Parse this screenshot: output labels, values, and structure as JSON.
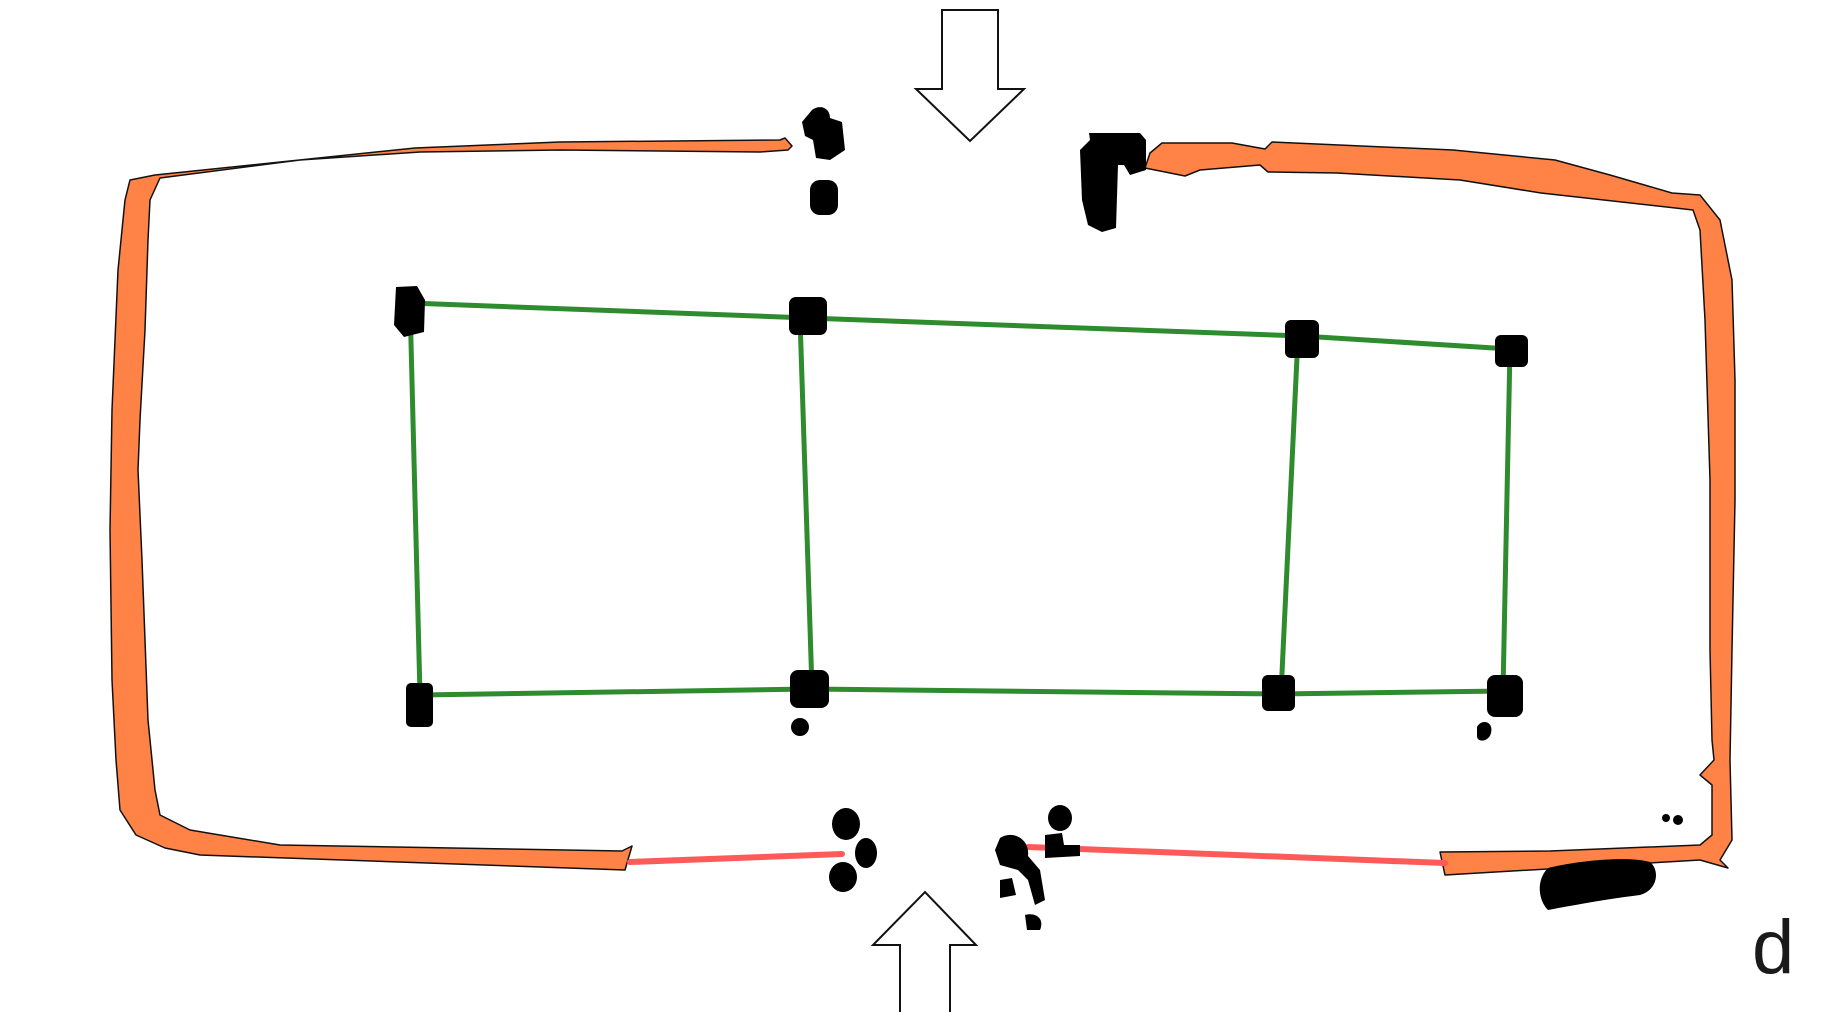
{
  "panel_label": "d",
  "colors": {
    "outer_wall": "#ff8347",
    "outer_wall_outline": "#111111",
    "inner_grid": "#2e8b2e",
    "gap_segment": "#ff5a5a",
    "node": "#000000",
    "arrow_fill": "#ffffff",
    "arrow_outline": "#111111"
  },
  "icons": {
    "top_arrow": "down-arrow-icon",
    "bottom_arrow": "up-arrow-icon"
  }
}
